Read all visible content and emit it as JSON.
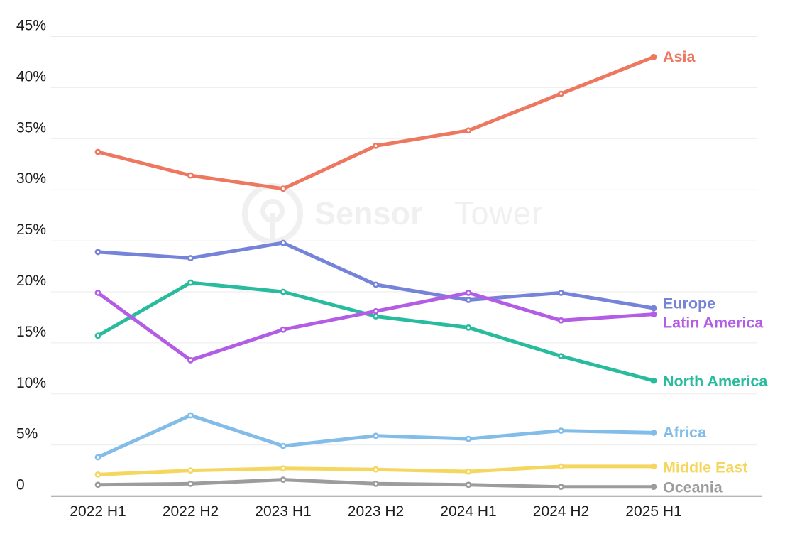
{
  "watermark": {
    "word1": "Sensor",
    "word2": "Tower",
    "logo": "sensor-tower-logo"
  },
  "chart_data": {
    "type": "line",
    "title": "",
    "xlabel": "",
    "ylabel": "",
    "categories": [
      "2022 H1",
      "2022 H2",
      "2023 H1",
      "2023 H2",
      "2024 H1",
      "2024 H2",
      "2025 H1"
    ],
    "series": [
      {
        "name": "Asia",
        "color": "#ee7760",
        "values": [
          33.7,
          31.4,
          30.1,
          34.3,
          35.8,
          39.4,
          43.0
        ]
      },
      {
        "name": "Europe",
        "color": "#7583d8",
        "values": [
          23.9,
          23.3,
          24.8,
          20.7,
          19.2,
          19.9,
          18.4
        ]
      },
      {
        "name": "Latin America",
        "color": "#b35de5",
        "values": [
          19.9,
          13.3,
          16.3,
          18.1,
          19.9,
          17.2,
          17.8
        ]
      },
      {
        "name": "North America",
        "color": "#29bb9e",
        "values": [
          15.7,
          20.9,
          20.0,
          17.6,
          16.5,
          13.7,
          11.3
        ]
      },
      {
        "name": "Africa",
        "color": "#82bde9",
        "values": [
          3.8,
          7.9,
          4.9,
          5.9,
          5.6,
          6.4,
          6.2
        ]
      },
      {
        "name": "Middle East",
        "color": "#f5d75f",
        "values": [
          2.1,
          2.5,
          2.7,
          2.6,
          2.4,
          2.9,
          2.9
        ]
      },
      {
        "name": "Oceania",
        "color": "#9c9c9c",
        "values": [
          1.1,
          1.2,
          1.6,
          1.2,
          1.1,
          0.9,
          0.9
        ]
      }
    ],
    "y_ticks": [
      "45%",
      "40%",
      "35%",
      "30%",
      "25%",
      "20%",
      "15%",
      "10%",
      "5%",
      "0"
    ],
    "y_tick_values": [
      45,
      40,
      35,
      30,
      25,
      20,
      15,
      10,
      5,
      0
    ],
    "ylim": [
      0,
      45
    ],
    "grid": true,
    "legend_position": "right-inline-labels"
  }
}
